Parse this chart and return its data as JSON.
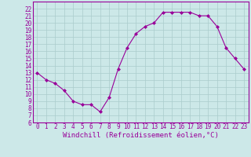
{
  "x": [
    0,
    1,
    2,
    3,
    4,
    5,
    6,
    7,
    8,
    9,
    10,
    11,
    12,
    13,
    14,
    15,
    16,
    17,
    18,
    19,
    20,
    21,
    22,
    23
  ],
  "y": [
    13,
    12,
    11.5,
    10.5,
    9,
    8.5,
    8.5,
    7.5,
    9.5,
    13.5,
    16.5,
    18.5,
    19.5,
    20,
    21.5,
    21.5,
    21.5,
    21.5,
    21,
    21,
    19.5,
    16.5,
    15,
    13.5
  ],
  "line_color": "#990099",
  "marker": "D",
  "markersize": 2,
  "linewidth": 0.8,
  "background_color": "#cce8e8",
  "grid_color": "#aacccc",
  "xlabel": "Windchill (Refroidissement éolien,°C)",
  "xlim": [
    -0.5,
    23.5
  ],
  "ylim": [
    6,
    23
  ],
  "yticks": [
    6,
    7,
    8,
    9,
    10,
    11,
    12,
    13,
    14,
    15,
    16,
    17,
    18,
    19,
    20,
    21,
    22
  ],
  "xticks": [
    0,
    1,
    2,
    3,
    4,
    5,
    6,
    7,
    8,
    9,
    10,
    11,
    12,
    13,
    14,
    15,
    16,
    17,
    18,
    19,
    20,
    21,
    22,
    23
  ],
  "tick_fontsize": 5.5,
  "xlabel_fontsize": 6.5,
  "tick_color": "#990099",
  "label_color": "#990099",
  "spine_color": "#990099"
}
